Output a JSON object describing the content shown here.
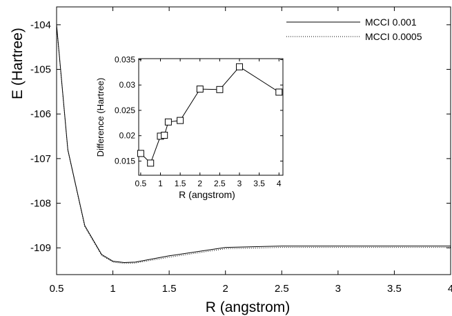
{
  "chart_data": [
    {
      "type": "line",
      "xlabel": "R (angstrom)",
      "ylabel": "E (Hartree)",
      "xlim": [
        0.5,
        4
      ],
      "ylim": [
        -109.6,
        -103.6
      ],
      "x_ticks": [
        "0.5",
        "1",
        "1.5",
        "2",
        "2.5",
        "3",
        "3.5",
        "4"
      ],
      "y_ticks": [
        "-104",
        "-105",
        "-106",
        "-107",
        "-108",
        "-109"
      ],
      "legend_position": "top-right",
      "series": [
        {
          "name": "MCCI 0.001",
          "style": "solid",
          "color": "#000000",
          "x": [
            0.5,
            0.6,
            0.75,
            0.9,
            1.0,
            1.1,
            1.2,
            1.5,
            2.0,
            2.5,
            3.0,
            3.5,
            4.0
          ],
          "y": [
            -104.0,
            -106.8,
            -108.5,
            -109.15,
            -109.3,
            -109.33,
            -109.32,
            -109.18,
            -108.99,
            -108.96,
            -108.96,
            -108.96,
            -108.96
          ]
        },
        {
          "name": "MCCI 0.0005",
          "style": "dotted",
          "color": "#000000",
          "x": [
            0.5,
            0.6,
            0.75,
            0.9,
            1.0,
            1.1,
            1.2,
            1.5,
            2.0,
            2.5,
            3.0,
            3.5,
            4.0
          ],
          "y": [
            -104.02,
            -106.82,
            -108.52,
            -109.17,
            -109.32,
            -109.35,
            -109.34,
            -109.21,
            -109.02,
            -108.99,
            -108.99,
            -108.99,
            -108.99
          ]
        }
      ]
    },
    {
      "type": "line",
      "markers": "square",
      "xlabel": "R (angstrom)",
      "ylabel": "Difference (Hartree)",
      "xlim": [
        0.45,
        4.1
      ],
      "ylim": [
        0.0122,
        0.0352
      ],
      "x_ticks": [
        "0.5",
        "1",
        "1.5",
        "2",
        "2.5",
        "3",
        "3.5",
        "4"
      ],
      "y_ticks": [
        "0.015",
        "0.02",
        "0.025",
        "0.03",
        "0.035"
      ],
      "series": [
        {
          "x": [
            0.5,
            0.75,
            1.0,
            1.1,
            1.2,
            1.5,
            2.0,
            2.5,
            3.0,
            4.0
          ],
          "y": [
            0.0165,
            0.0146,
            0.0199,
            0.0201,
            0.0227,
            0.023,
            0.0292,
            0.0291,
            0.0336,
            0.0286
          ]
        }
      ]
    }
  ]
}
